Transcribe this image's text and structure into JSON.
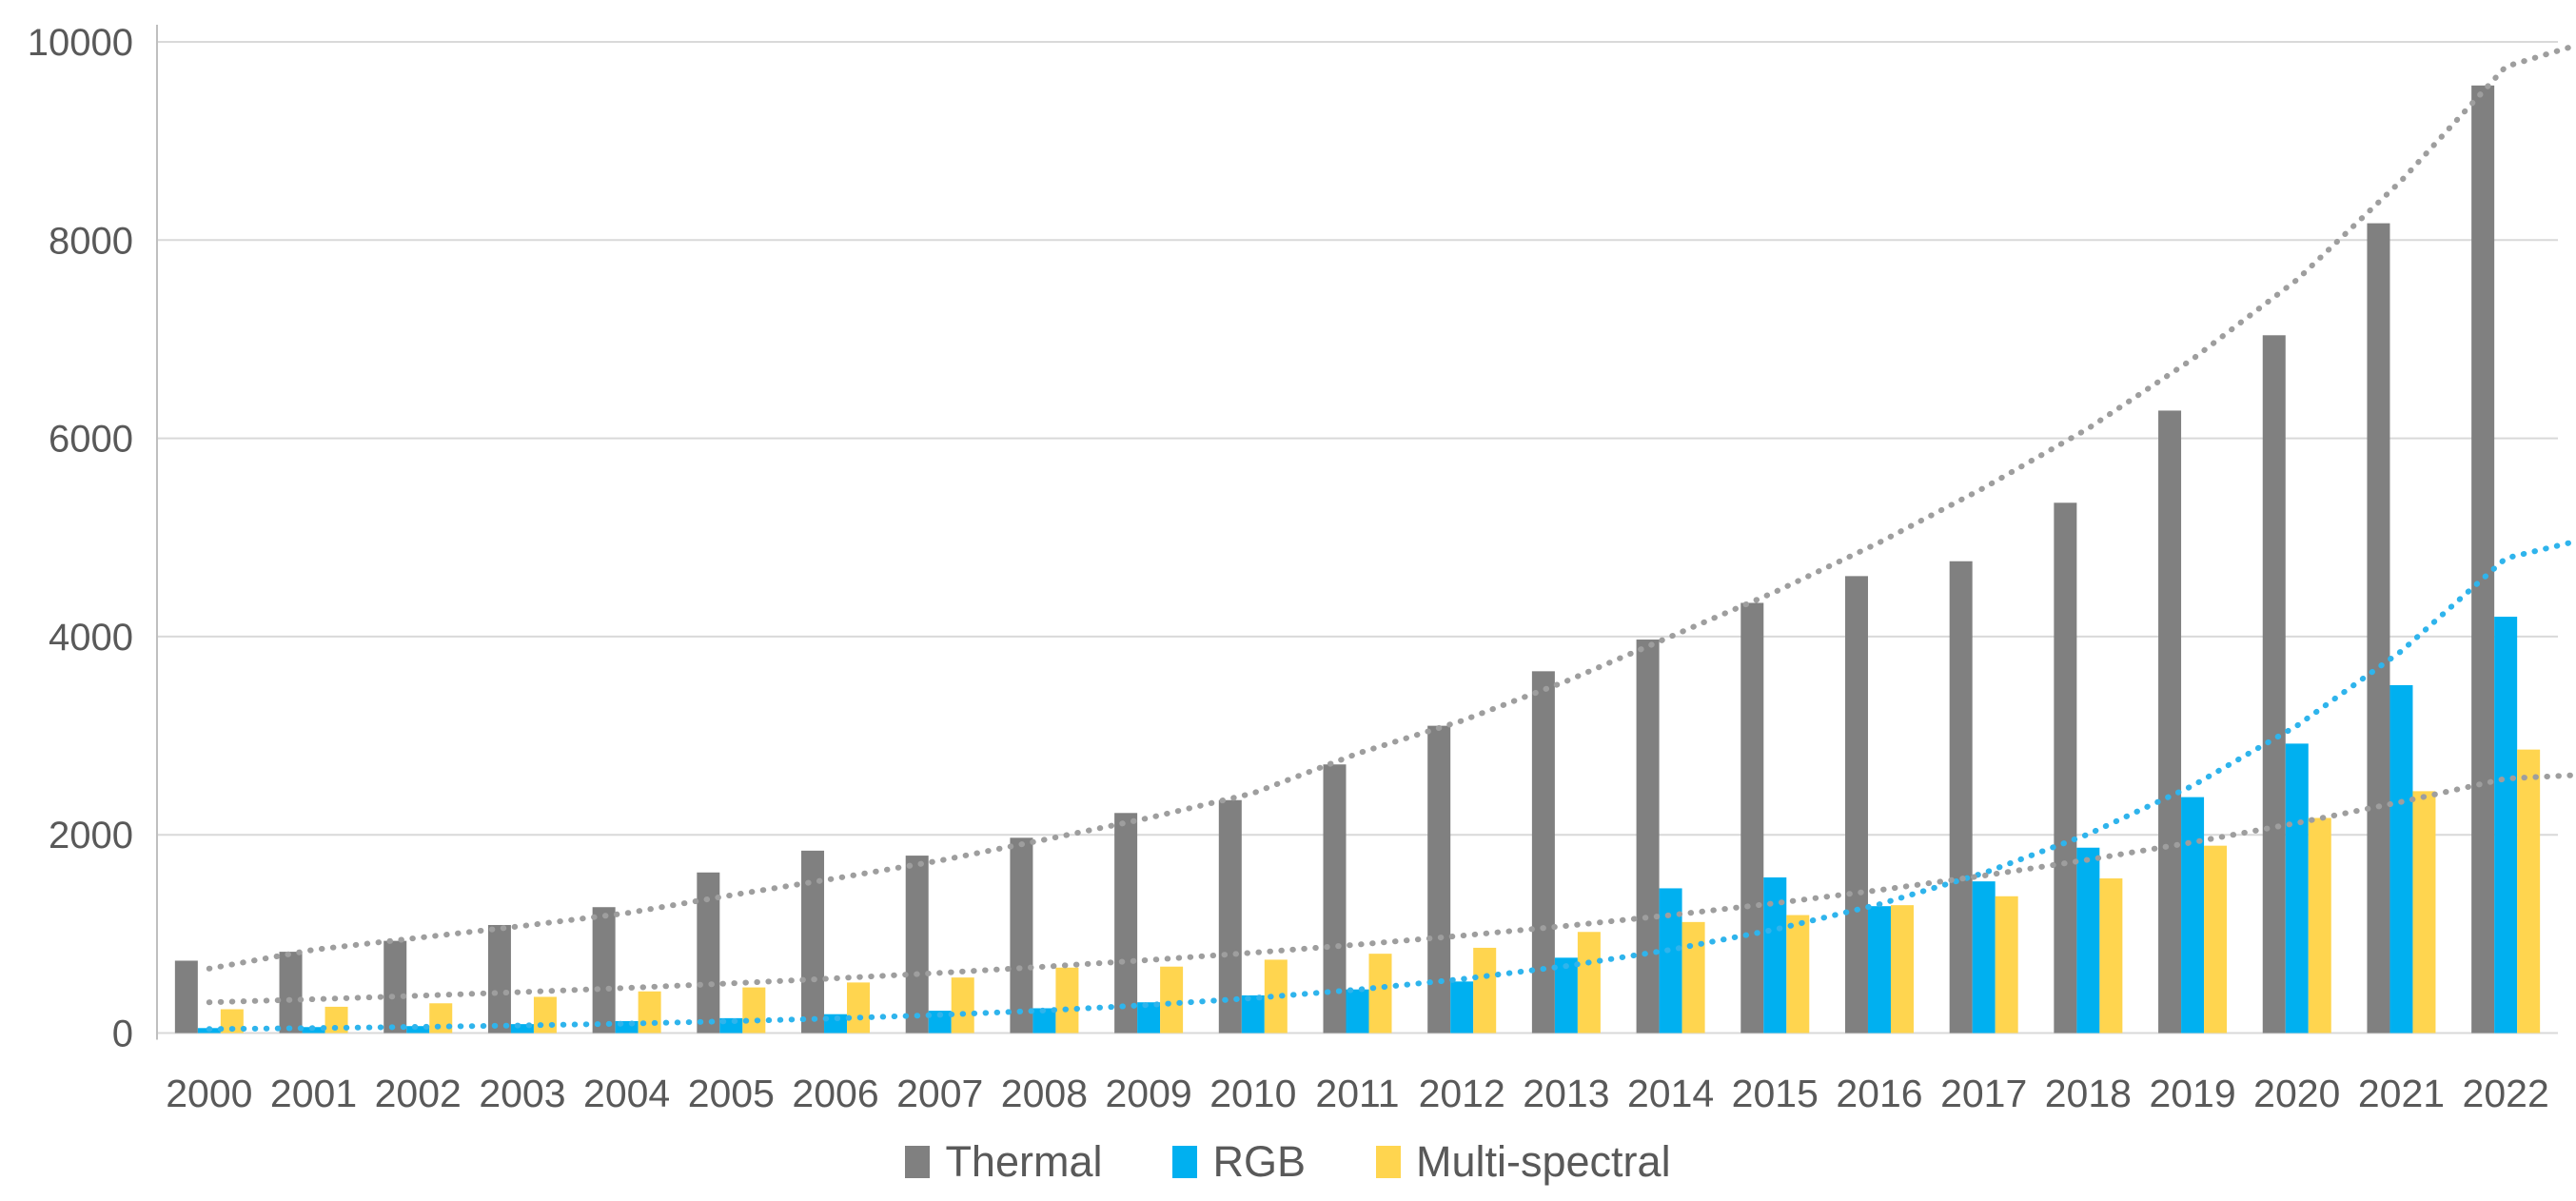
{
  "chart_data": {
    "type": "bar",
    "title": "",
    "xlabel": "",
    "ylabel": "",
    "categories": [
      "2000",
      "2001",
      "2002",
      "2003",
      "2004",
      "2005",
      "2006",
      "2007",
      "2008",
      "2009",
      "2010",
      "2011",
      "2012",
      "2013",
      "2014",
      "2015",
      "2016",
      "2017",
      "2018",
      "2019",
      "2020",
      "2021",
      "2022"
    ],
    "series": [
      {
        "name": "Thermal",
        "color": "#808080",
        "values": [
          730,
          820,
          930,
          1090,
          1270,
          1620,
          1840,
          1790,
          1970,
          2220,
          2350,
          2710,
          3100,
          3650,
          3970,
          4340,
          4610,
          4760,
          5350,
          6280,
          7040,
          8170,
          9560
        ]
      },
      {
        "name": "RGB",
        "color": "#00B0F0",
        "values": [
          50,
          60,
          70,
          90,
          120,
          150,
          190,
          225,
          250,
          310,
          380,
          440,
          520,
          760,
          1460,
          1570,
          1280,
          1530,
          1870,
          2380,
          2920,
          3510,
          4200
        ]
      },
      {
        "name": "Multi-spectral",
        "color": "#FFD54F",
        "values": [
          240,
          265,
          300,
          365,
          420,
          460,
          510,
          560,
          660,
          670,
          740,
          800,
          860,
          1020,
          1120,
          1190,
          1290,
          1380,
          1560,
          1890,
          2170,
          2440,
          2860
        ]
      }
    ],
    "trendlines": [
      {
        "series": "Thermal",
        "style": "dotted",
        "color": "#9E9E9E",
        "values": [
          650,
          840,
          960,
          1080,
          1210,
          1390,
          1560,
          1740,
          1950,
          2170,
          2420,
          2820,
          3150,
          3550,
          4000,
          4450,
          4950,
          5500,
          6100,
          6800,
          7600,
          8600,
          9750,
          9950
        ]
      },
      {
        "series": "RGB",
        "style": "dotted",
        "color": "#2FB4EC",
        "values": [
          40,
          50,
          62,
          77,
          95,
          119,
          148,
          183,
          228,
          283,
          352,
          438,
          544,
          676,
          840,
          1045,
          1299,
          1614,
          2006,
          2494,
          3100,
          3853,
          4790,
          4950
        ]
      },
      {
        "series": "Multi-spectral",
        "style": "dotted",
        "color": "#9E9E9E",
        "values": [
          310,
          341,
          376,
          414,
          455,
          501,
          552,
          607,
          669,
          736,
          810,
          892,
          982,
          1081,
          1190,
          1310,
          1442,
          1588,
          1748,
          1924,
          2119,
          2332,
          2567,
          2600
        ]
      }
    ],
    "ylim": [
      0,
      10000
    ],
    "ytick_step": 2000,
    "yticks": [
      "0",
      "2000",
      "4000",
      "6000",
      "8000",
      "10000"
    ],
    "grid": true,
    "legend_position": "bottom",
    "colors": {
      "gridline": "#D9D9D9",
      "axis_line": "#BFBFBF",
      "tick_text": "#595959",
      "background": "#FFFFFF"
    }
  }
}
